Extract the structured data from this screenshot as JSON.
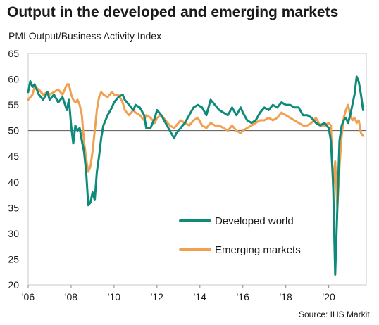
{
  "chart_data": {
    "type": "line",
    "title": "Output in the developed and emerging markets",
    "ylabel": "PMI Output/Business  Activity Index",
    "source": "Source: IHS Markit.",
    "ylim": [
      20,
      65
    ],
    "yticks": [
      20,
      25,
      30,
      35,
      40,
      45,
      50,
      55,
      60,
      65
    ],
    "xlim": [
      2006.0,
      2021.75
    ],
    "xticks": [
      {
        "value": 2006,
        "label": "'06"
      },
      {
        "value": 2008,
        "label": "'08"
      },
      {
        "value": 2010,
        "label": "'10"
      },
      {
        "value": 2012,
        "label": "'12"
      },
      {
        "value": 2014,
        "label": "'14"
      },
      {
        "value": 2016,
        "label": "'16"
      },
      {
        "value": 2018,
        "label": "'18"
      },
      {
        "value": 2020,
        "label": "'20"
      }
    ],
    "reference_line": 50,
    "legend_position": "lower-center",
    "series": [
      {
        "name": "Developed world",
        "color": "#0f8a79",
        "x": [
          2006.0,
          2006.1,
          2006.2,
          2006.3,
          2006.5,
          2006.7,
          2006.9,
          2007.0,
          2007.2,
          2007.4,
          2007.6,
          2007.8,
          2007.9,
          2008.0,
          2008.1,
          2008.2,
          2008.3,
          2008.4,
          2008.5,
          2008.6,
          2008.7,
          2008.8,
          2008.9,
          2009.0,
          2009.1,
          2009.2,
          2009.3,
          2009.4,
          2009.5,
          2009.7,
          2009.9,
          2010.0,
          2010.2,
          2010.4,
          2010.5,
          2010.7,
          2010.9,
          2011.0,
          2011.2,
          2011.4,
          2011.5,
          2011.7,
          2011.9,
          2012.0,
          2012.2,
          2012.4,
          2012.6,
          2012.8,
          2012.9,
          2013.1,
          2013.3,
          2013.5,
          2013.7,
          2013.9,
          2014.1,
          2014.3,
          2014.5,
          2014.7,
          2014.9,
          2015.1,
          2015.3,
          2015.5,
          2015.7,
          2015.9,
          2016.0,
          2016.2,
          2016.4,
          2016.6,
          2016.8,
          2017.0,
          2017.2,
          2017.4,
          2017.6,
          2017.8,
          2018.0,
          2018.2,
          2018.4,
          2018.6,
          2018.8,
          2019.0,
          2019.2,
          2019.4,
          2019.6,
          2019.8,
          2020.0,
          2020.1,
          2020.2,
          2020.3,
          2020.4,
          2020.5,
          2020.6,
          2020.7,
          2020.8,
          2020.9,
          2021.0,
          2021.1,
          2021.2,
          2021.3,
          2021.4,
          2021.5,
          2021.6
        ],
        "values": [
          57.5,
          59.6,
          58.5,
          59.0,
          57.0,
          56.0,
          57.5,
          56.0,
          57.0,
          55.5,
          56.5,
          54.0,
          56.0,
          51.0,
          47.5,
          51.0,
          50.0,
          50.5,
          48.0,
          46.0,
          42.0,
          35.5,
          36.0,
          38.0,
          36.5,
          42.0,
          45.0,
          48.5,
          51.0,
          53.0,
          54.5,
          55.5,
          56.5,
          57.0,
          56.0,
          55.0,
          54.0,
          55.0,
          54.5,
          53.0,
          50.5,
          50.5,
          52.5,
          54.0,
          53.0,
          51.5,
          50.0,
          48.5,
          49.5,
          50.5,
          51.5,
          53.0,
          54.5,
          55.0,
          54.5,
          53.0,
          56.0,
          55.0,
          54.0,
          53.5,
          53.0,
          54.5,
          53.0,
          54.5,
          53.5,
          52.0,
          51.5,
          52.0,
          53.5,
          54.5,
          54.0,
          55.0,
          54.5,
          55.5,
          55.0,
          55.0,
          54.5,
          54.5,
          53.0,
          53.0,
          52.5,
          51.5,
          51.0,
          51.5,
          50.5,
          48.0,
          40.0,
          22.0,
          35.0,
          48.0,
          51.0,
          52.0,
          52.5,
          51.5,
          53.0,
          55.0,
          57.0,
          60.5,
          59.5,
          57.0,
          54.0
        ]
      },
      {
        "name": "Emerging  markets",
        "color": "#f0a050",
        "x": [
          2006.0,
          2006.1,
          2006.2,
          2006.3,
          2006.5,
          2006.7,
          2006.9,
          2007.0,
          2007.2,
          2007.4,
          2007.6,
          2007.8,
          2007.9,
          2008.0,
          2008.1,
          2008.2,
          2008.3,
          2008.4,
          2008.5,
          2008.6,
          2008.7,
          2008.8,
          2008.9,
          2009.0,
          2009.1,
          2009.2,
          2009.3,
          2009.4,
          2009.5,
          2009.7,
          2009.9,
          2010.0,
          2010.2,
          2010.4,
          2010.5,
          2010.7,
          2010.9,
          2011.0,
          2011.2,
          2011.4,
          2011.5,
          2011.7,
          2011.9,
          2012.0,
          2012.2,
          2012.4,
          2012.6,
          2012.8,
          2012.9,
          2013.1,
          2013.3,
          2013.5,
          2013.7,
          2013.9,
          2014.1,
          2014.3,
          2014.5,
          2014.7,
          2014.9,
          2015.1,
          2015.3,
          2015.5,
          2015.7,
          2015.9,
          2016.0,
          2016.2,
          2016.4,
          2016.6,
          2016.8,
          2017.0,
          2017.2,
          2017.4,
          2017.6,
          2017.8,
          2018.0,
          2018.2,
          2018.4,
          2018.6,
          2018.8,
          2019.0,
          2019.2,
          2019.4,
          2019.6,
          2019.8,
          2020.0,
          2020.1,
          2020.2,
          2020.3,
          2020.4,
          2020.5,
          2020.6,
          2020.7,
          2020.8,
          2020.9,
          2021.0,
          2021.1,
          2021.2,
          2021.3,
          2021.4,
          2021.5,
          2021.6
        ],
        "values": [
          56.0,
          56.5,
          57.0,
          58.5,
          58.0,
          57.0,
          57.5,
          57.0,
          57.5,
          58.0,
          57.0,
          59.0,
          59.0,
          57.0,
          56.0,
          55.5,
          56.0,
          55.0,
          53.0,
          48.0,
          44.5,
          42.0,
          43.0,
          46.0,
          50.0,
          54.0,
          56.5,
          57.5,
          57.0,
          56.5,
          57.5,
          57.0,
          57.0,
          55.5,
          54.0,
          53.0,
          54.0,
          53.5,
          53.0,
          52.0,
          53.0,
          52.5,
          51.5,
          52.5,
          53.0,
          52.0,
          51.0,
          50.5,
          51.0,
          52.0,
          51.5,
          51.0,
          52.0,
          52.5,
          51.0,
          50.5,
          51.5,
          51.0,
          51.0,
          50.5,
          50.0,
          51.0,
          50.0,
          49.5,
          50.0,
          50.5,
          51.0,
          51.5,
          52.0,
          52.0,
          52.5,
          52.0,
          52.5,
          53.5,
          53.0,
          52.5,
          52.0,
          51.5,
          51.0,
          51.0,
          51.5,
          52.5,
          51.0,
          51.0,
          51.5,
          51.0,
          39.0,
          44.0,
          35.0,
          43.0,
          49.0,
          52.5,
          54.0,
          55.0,
          53.0,
          52.0,
          52.5,
          51.5,
          52.0,
          49.5,
          49.0
        ]
      }
    ]
  }
}
